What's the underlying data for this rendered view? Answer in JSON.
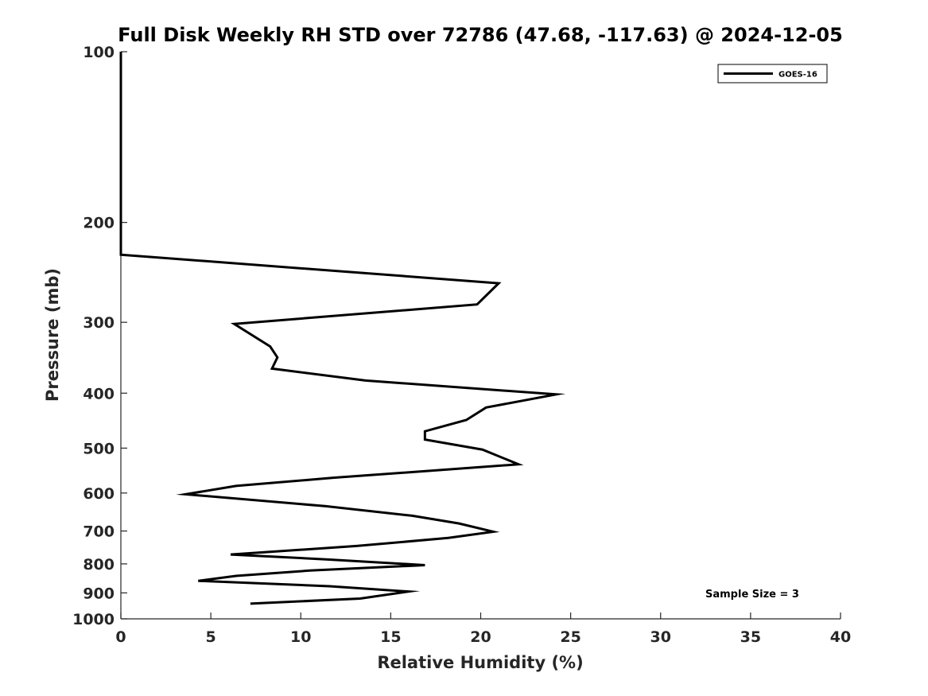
{
  "chart_data": {
    "type": "line",
    "title": "Full Disk Weekly RH STD over 72786 (47.68, -117.63) @ 2024-12-05",
    "xlabel": "Relative Humidity (%)",
    "ylabel": "Pressure (mb)",
    "xlim": [
      0,
      40
    ],
    "ylim": [
      100,
      1000
    ],
    "yscale": "log",
    "y_reversed": true,
    "grid": false,
    "xticks": [
      0,
      5,
      10,
      15,
      20,
      25,
      30,
      35,
      40
    ],
    "yticks": [
      100,
      200,
      300,
      400,
      500,
      600,
      700,
      800,
      900,
      1000
    ],
    "legend": {
      "placement": "top-right"
    },
    "annotation": "Sample Size = 3",
    "series": [
      {
        "name": "GOES-16",
        "color": "#000000",
        "points": [
          {
            "x": 0,
            "p": 100
          },
          {
            "x": 0,
            "p": 150
          },
          {
            "x": 0,
            "p": 200
          },
          {
            "x": 0,
            "p": 228
          },
          {
            "x": 21.0,
            "p": 256
          },
          {
            "x": 19.8,
            "p": 279
          },
          {
            "x": 6.3,
            "p": 302
          },
          {
            "x": 8.3,
            "p": 331
          },
          {
            "x": 8.7,
            "p": 346
          },
          {
            "x": 8.4,
            "p": 362
          },
          {
            "x": 13.6,
            "p": 380
          },
          {
            "x": 24.2,
            "p": 402
          },
          {
            "x": 20.3,
            "p": 424
          },
          {
            "x": 19.2,
            "p": 446
          },
          {
            "x": 16.9,
            "p": 467
          },
          {
            "x": 16.9,
            "p": 483
          },
          {
            "x": 20.1,
            "p": 503
          },
          {
            "x": 22.1,
            "p": 534
          },
          {
            "x": 11.8,
            "p": 564
          },
          {
            "x": 6.4,
            "p": 583
          },
          {
            "x": 3.6,
            "p": 603
          },
          {
            "x": 11.4,
            "p": 633
          },
          {
            "x": 16.2,
            "p": 658
          },
          {
            "x": 18.8,
            "p": 679
          },
          {
            "x": 20.7,
            "p": 702
          },
          {
            "x": 18.2,
            "p": 720
          },
          {
            "x": 13.1,
            "p": 744
          },
          {
            "x": 6.1,
            "p": 770
          },
          {
            "x": 11.6,
            "p": 786
          },
          {
            "x": 16.9,
            "p": 804
          },
          {
            "x": 10.5,
            "p": 822
          },
          {
            "x": 6.4,
            "p": 840
          },
          {
            "x": 4.3,
            "p": 857
          },
          {
            "x": 11.6,
            "p": 876
          },
          {
            "x": 16.0,
            "p": 895
          },
          {
            "x": 13.3,
            "p": 921
          },
          {
            "x": 7.2,
            "p": 940
          }
        ]
      }
    ]
  }
}
